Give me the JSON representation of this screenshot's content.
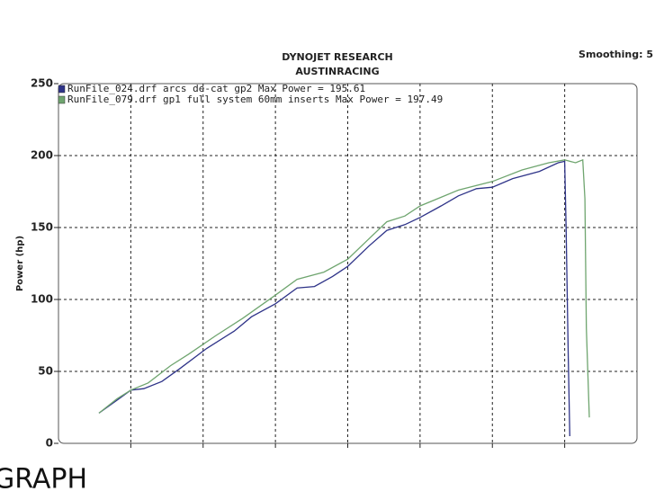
{
  "chart_data": {
    "type": "line",
    "title": "DYNOJET RESEARCH",
    "subtitle": "AUSTINRACING",
    "annotation": "Smoothing: 5",
    "ylabel": "Power (hp)",
    "caption": "GRAPH",
    "xlim": [
      0,
      8
    ],
    "ylim": [
      0,
      250
    ],
    "yticks": [
      0,
      50,
      100,
      150,
      200,
      250
    ],
    "grid": true,
    "legend": "upper left",
    "series": [
      {
        "name": "RunFile_024.drf arcs de-cat gp2 Max Power = 195.61",
        "color": "#2e3388",
        "x": [
          0.56,
          0.81,
          1.0,
          1.18,
          1.43,
          1.68,
          2.05,
          2.43,
          2.67,
          3.0,
          3.3,
          3.54,
          3.79,
          4.0,
          4.29,
          4.54,
          4.79,
          5.0,
          5.29,
          5.53,
          5.78,
          6.0,
          6.28,
          6.65,
          6.91,
          7.0,
          7.02,
          7.05,
          7.07
        ],
        "values": [
          21,
          30,
          37,
          38,
          43,
          52,
          66,
          78,
          88,
          97,
          108,
          109,
          116,
          123,
          137,
          148,
          152,
          157,
          165,
          172,
          177,
          178,
          184,
          189,
          195,
          196,
          150,
          60,
          5
        ]
      },
      {
        "name": "RunFile_079.drf gp1 full system 60mm inserts Max Power = 197.49",
        "color": "#6fa56f",
        "x": [
          0.56,
          0.81,
          1.0,
          1.24,
          1.55,
          1.8,
          2.18,
          2.55,
          3.0,
          3.3,
          3.67,
          4.0,
          4.29,
          4.54,
          4.79,
          5.0,
          5.29,
          5.53,
          6.0,
          6.41,
          6.78,
          7.0,
          7.15,
          7.25,
          7.28,
          7.3,
          7.34
        ],
        "values": [
          21,
          31,
          37,
          42,
          54,
          62,
          75,
          87,
          103,
          114,
          119,
          128,
          142,
          154,
          158,
          165,
          171,
          176,
          182,
          190,
          195,
          197,
          195,
          197,
          170,
          80,
          18
        ]
      }
    ]
  }
}
